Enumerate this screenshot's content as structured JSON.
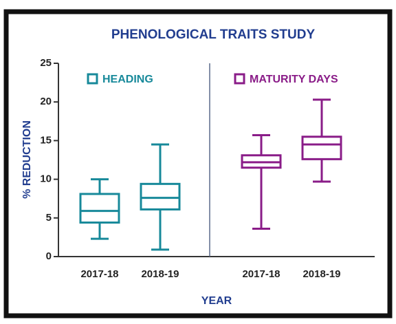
{
  "chart_data": {
    "type": "box",
    "title": "PHENOLOGICAL TRAITS STUDY",
    "x_label": "YEAR",
    "y_label": "% REDUCTION",
    "categories": [
      "2017-18",
      "2018-19"
    ],
    "ylim": [
      0,
      25
    ],
    "yticks": [
      0,
      5,
      10,
      15,
      20,
      25
    ],
    "series": [
      {
        "name": "HEADING",
        "color": "#17899a",
        "min": [
          2.3,
          0.9
        ],
        "q1": [
          4.4,
          6.1
        ],
        "median": [
          5.9,
          7.6
        ],
        "q3": [
          8.1,
          9.4
        ],
        "max": [
          10.0,
          14.5
        ]
      },
      {
        "name": "MATURITY DAYS",
        "color": "#8a1c88",
        "min": [
          3.6,
          9.7
        ],
        "q1": [
          11.5,
          12.6
        ],
        "median": [
          12.2,
          14.5
        ],
        "q3": [
          13.1,
          15.5
        ],
        "max": [
          15.7,
          20.3
        ]
      }
    ]
  }
}
